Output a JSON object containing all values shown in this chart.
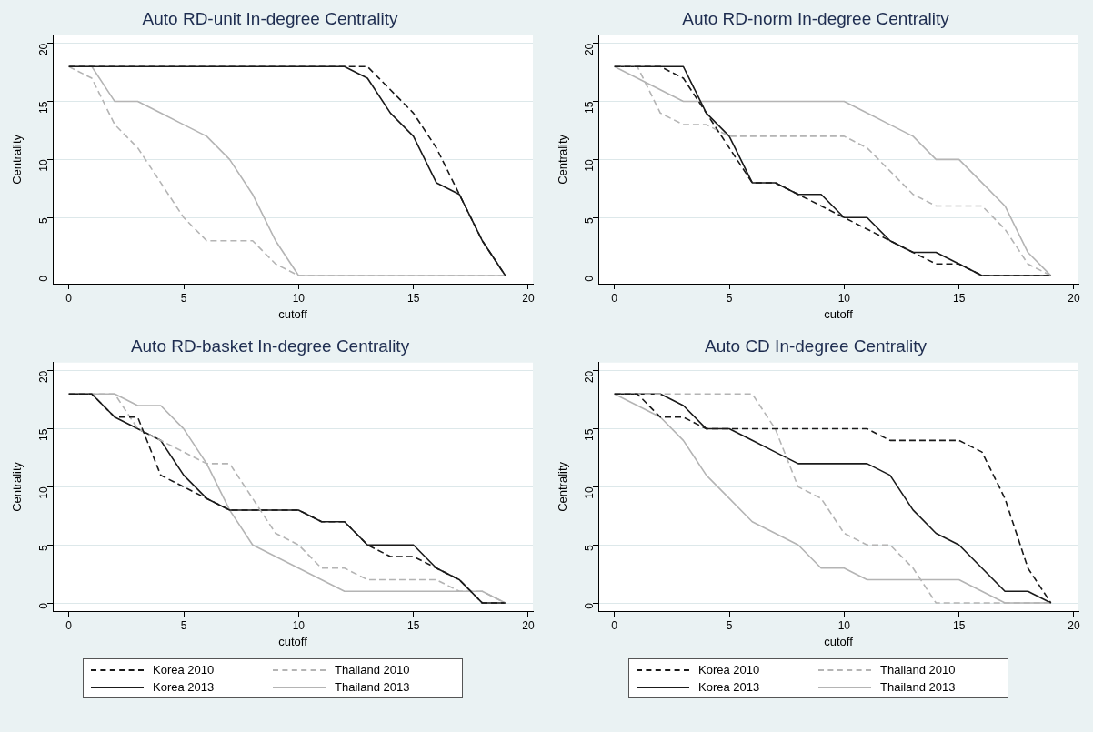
{
  "chart_data": [
    {
      "type": "line",
      "title": "Auto RD-unit In-degree Centrality",
      "xlabel": "cutoff",
      "ylabel": "Centrality",
      "x": [
        0,
        1,
        2,
        3,
        4,
        5,
        6,
        7,
        8,
        9,
        10,
        11,
        12,
        13,
        14,
        15,
        16,
        17,
        18,
        19
      ],
      "xlim": [
        -0.7,
        20.2
      ],
      "xticks": [
        0,
        5,
        10,
        15,
        20
      ],
      "ylim": [
        -0.7,
        20.7
      ],
      "yticks": [
        0,
        5,
        10,
        15,
        20
      ],
      "grid": "y",
      "legend": false,
      "marker": "none",
      "series": [
        {
          "color": "#1a1a1a",
          "line_style": "dashed",
          "values": [
            18,
            18,
            18,
            18,
            18,
            18,
            18,
            18,
            18,
            18,
            18,
            18,
            18,
            18,
            16,
            14,
            11,
            7,
            3,
            0
          ]
        },
        {
          "color": "#b4b4b4",
          "line_style": "dashed",
          "values": [
            18,
            17,
            13,
            11,
            8,
            5,
            3,
            3,
            3,
            1,
            0,
            0,
            0,
            0,
            0,
            0,
            0,
            0,
            0,
            0
          ]
        },
        {
          "color": "#1a1a1a",
          "line_style": "solid",
          "values": [
            18,
            18,
            18,
            18,
            18,
            18,
            18,
            18,
            18,
            18,
            18,
            18,
            18,
            17,
            14,
            12,
            8,
            7,
            3,
            0
          ]
        },
        {
          "color": "#b4b4b4",
          "line_style": "solid",
          "values": [
            18,
            18,
            15,
            15,
            14,
            13,
            12,
            10,
            7,
            3,
            0,
            0,
            0,
            0,
            0,
            0,
            0,
            0,
            0,
            0
          ]
        }
      ]
    },
    {
      "type": "line",
      "title": "Auto RD-norm In-degree Centrality",
      "xlabel": "cutoff",
      "ylabel": "Centrality",
      "x": [
        0,
        1,
        2,
        3,
        4,
        5,
        6,
        7,
        8,
        9,
        10,
        11,
        12,
        13,
        14,
        15,
        16,
        17,
        18,
        19
      ],
      "xlim": [
        -0.7,
        20.2
      ],
      "xticks": [
        0,
        5,
        10,
        15,
        20
      ],
      "ylim": [
        -0.7,
        20.7
      ],
      "yticks": [
        0,
        5,
        10,
        15,
        20
      ],
      "grid": "y",
      "legend": false,
      "marker": "none",
      "series": [
        {
          "color": "#1a1a1a",
          "line_style": "dashed",
          "values": [
            18,
            18,
            18,
            17,
            14,
            11,
            8,
            8,
            7,
            6,
            5,
            4,
            3,
            2,
            1,
            1,
            0,
            0,
            0,
            0
          ]
        },
        {
          "color": "#b4b4b4",
          "line_style": "dashed",
          "values": [
            18,
            18,
            14,
            13,
            13,
            12,
            12,
            12,
            12,
            12,
            12,
            11,
            9,
            7,
            6,
            6,
            6,
            4,
            1,
            0
          ]
        },
        {
          "color": "#1a1a1a",
          "line_style": "solid",
          "values": [
            18,
            18,
            18,
            18,
            14,
            12,
            8,
            8,
            7,
            7,
            5,
            5,
            3,
            2,
            2,
            1,
            0,
            0,
            0,
            0
          ]
        },
        {
          "color": "#b4b4b4",
          "line_style": "solid",
          "values": [
            18,
            17,
            16,
            15,
            15,
            15,
            15,
            15,
            15,
            15,
            15,
            14,
            13,
            12,
            10,
            10,
            8,
            6,
            2,
            0
          ]
        }
      ]
    },
    {
      "type": "line",
      "title": "Auto RD-basket In-degree Centrality",
      "xlabel": "cutoff",
      "ylabel": "Centrality",
      "x": [
        0,
        1,
        2,
        3,
        4,
        5,
        6,
        7,
        8,
        9,
        10,
        11,
        12,
        13,
        14,
        15,
        16,
        17,
        18,
        19
      ],
      "xlim": [
        -0.7,
        20.2
      ],
      "xticks": [
        0,
        5,
        10,
        15,
        20
      ],
      "ylim": [
        -0.7,
        20.7
      ],
      "yticks": [
        0,
        5,
        10,
        15,
        20
      ],
      "grid": "y",
      "legend": "bottom",
      "marker": "none",
      "series": [
        {
          "name": "Korea 2010",
          "color": "#1a1a1a",
          "line_style": "dashed",
          "values": [
            18,
            18,
            16,
            16,
            11,
            10,
            9,
            8,
            8,
            8,
            8,
            7,
            7,
            5,
            4,
            4,
            3,
            2,
            0,
            0
          ]
        },
        {
          "name": "Thailand 2010",
          "color": "#b4b4b4",
          "line_style": "dashed",
          "values": [
            18,
            18,
            18,
            15,
            14,
            13,
            12,
            12,
            9,
            6,
            5,
            3,
            3,
            2,
            2,
            2,
            2,
            1,
            1,
            0
          ]
        },
        {
          "name": "Korea 2013",
          "color": "#1a1a1a",
          "line_style": "solid",
          "values": [
            18,
            18,
            16,
            15,
            14,
            11,
            9,
            8,
            8,
            8,
            8,
            7,
            7,
            5,
            5,
            5,
            3,
            2,
            0,
            0
          ]
        },
        {
          "name": "Thailand 2013",
          "color": "#b4b4b4",
          "line_style": "solid",
          "values": [
            18,
            18,
            18,
            17,
            17,
            15,
            12,
            8,
            5,
            4,
            3,
            2,
            1,
            1,
            1,
            1,
            1,
            1,
            1,
            0
          ]
        }
      ]
    },
    {
      "type": "line",
      "title": "Auto CD In-degree Centrality",
      "xlabel": "cutoff",
      "ylabel": "Centrality",
      "x": [
        0,
        1,
        2,
        3,
        4,
        5,
        6,
        7,
        8,
        9,
        10,
        11,
        12,
        13,
        14,
        15,
        16,
        17,
        18,
        19
      ],
      "xlim": [
        -0.7,
        20.2
      ],
      "xticks": [
        0,
        5,
        10,
        15,
        20
      ],
      "ylim": [
        -0.7,
        20.7
      ],
      "yticks": [
        0,
        5,
        10,
        15,
        20
      ],
      "grid": "y",
      "legend": "bottom",
      "marker": "none",
      "series": [
        {
          "name": "Korea 2010",
          "color": "#1a1a1a",
          "line_style": "dashed",
          "values": [
            18,
            18,
            16,
            16,
            15,
            15,
            15,
            15,
            15,
            15,
            15,
            15,
            14,
            14,
            14,
            14,
            13,
            9,
            3,
            0
          ]
        },
        {
          "name": "Thailand 2010",
          "color": "#b4b4b4",
          "line_style": "dashed",
          "values": [
            18,
            18,
            18,
            18,
            18,
            18,
            18,
            15,
            10,
            9,
            6,
            5,
            5,
            3,
            0,
            0,
            0,
            0,
            0,
            0
          ]
        },
        {
          "name": "Korea 2013",
          "color": "#1a1a1a",
          "line_style": "solid",
          "values": [
            18,
            18,
            18,
            17,
            15,
            15,
            14,
            13,
            12,
            12,
            12,
            12,
            11,
            8,
            6,
            5,
            3,
            1,
            1,
            0
          ]
        },
        {
          "name": "Thailand 2013",
          "color": "#b4b4b4",
          "line_style": "solid",
          "values": [
            18,
            17,
            16,
            14,
            11,
            9,
            7,
            6,
            5,
            3,
            3,
            2,
            2,
            2,
            2,
            2,
            1,
            0,
            0,
            0
          ]
        }
      ]
    }
  ]
}
